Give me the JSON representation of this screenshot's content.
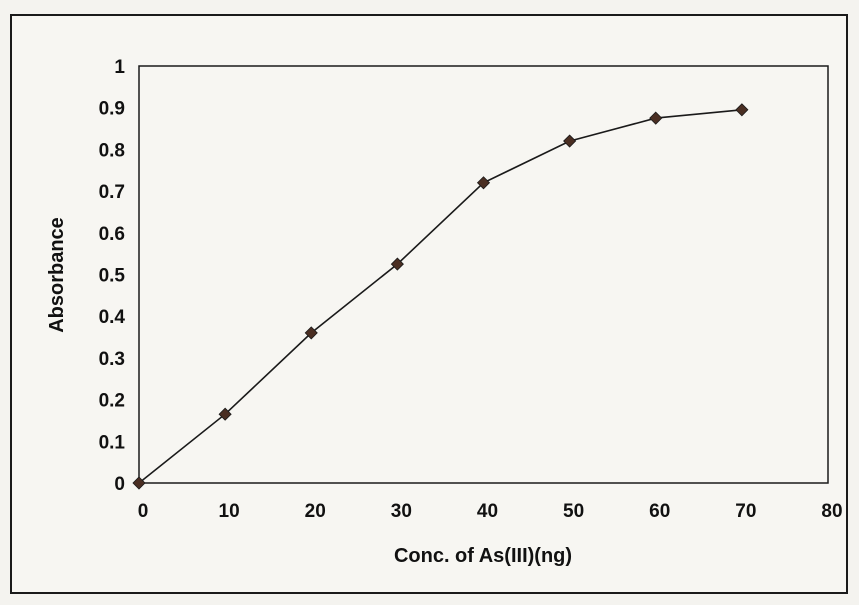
{
  "chart_data": {
    "type": "line",
    "title": "",
    "xlabel": "Conc. of As(III)(ng)",
    "ylabel": "Absorbance",
    "xlim": [
      0,
      80
    ],
    "ylim": [
      0,
      1
    ],
    "xticks": [
      0,
      10,
      20,
      30,
      40,
      50,
      60,
      70,
      80
    ],
    "yticks": [
      "0",
      "0.1",
      "0.2",
      "0.3",
      "0.4",
      "0.5",
      "0.6",
      "0.7",
      "0.8",
      "0.9",
      "1"
    ],
    "grid": false,
    "legend": "none",
    "marker": "diamond",
    "colors": {
      "line": "#1a1a1a",
      "marker": "#4a2e22",
      "axis": "#1a1a1a"
    },
    "series": [
      {
        "x": [
          0,
          10,
          20,
          30,
          40,
          50,
          60,
          70
        ],
        "y": [
          0,
          0.165,
          0.36,
          0.525,
          0.72,
          0.82,
          0.875,
          0.895
        ]
      }
    ]
  }
}
